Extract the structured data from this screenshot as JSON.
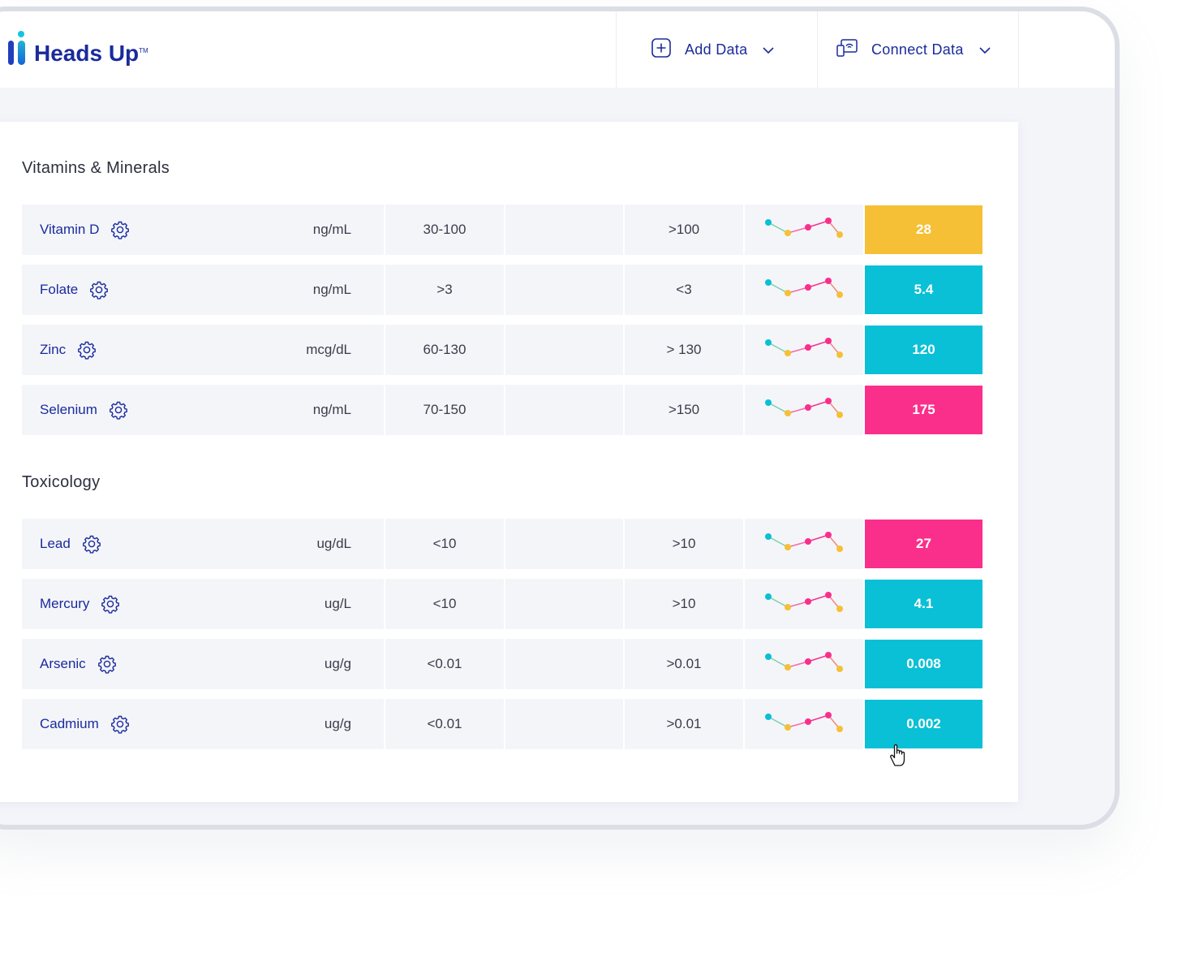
{
  "app": {
    "name": "Heads Up",
    "tm": "TM"
  },
  "header": {
    "add_data": "Add Data",
    "connect_data": "Connect Data"
  },
  "colors": {
    "brand": "#1a2b9c",
    "yellow": "#f5c036",
    "teal": "#09c0d6",
    "pink": "#fa2f8c",
    "row_bg": "#f4f5f9"
  },
  "sections": [
    {
      "title": "Vitamins & Minerals",
      "rows": [
        {
          "name": "Vitamin D",
          "unit": "ng/mL",
          "range": "30-100",
          "flag": ">100",
          "value": "28",
          "status": "yellow"
        },
        {
          "name": "Folate",
          "unit": "ng/mL",
          "range": ">3",
          "flag": "<3",
          "value": "5.4",
          "status": "teal"
        },
        {
          "name": "Zinc",
          "unit": "mcg/dL",
          "range": "60-130",
          "flag": "> 130",
          "value": "120",
          "status": "teal"
        },
        {
          "name": "Selenium",
          "unit": "ng/mL",
          "range": "70-150",
          "flag": ">150",
          "value": "175",
          "status": "pink"
        }
      ]
    },
    {
      "title": "Toxicology",
      "rows": [
        {
          "name": "Lead",
          "unit": "ug/dL",
          "range": "<10",
          "flag": ">10",
          "value": "27",
          "status": "pink"
        },
        {
          "name": "Mercury",
          "unit": "ug/L",
          "range": "<10",
          "flag": ">10",
          "value": "4.1",
          "status": "teal"
        },
        {
          "name": "Arsenic",
          "unit": "ug/g",
          "range": "<0.01",
          "flag": ">0.01",
          "value": "0.008",
          "status": "teal"
        },
        {
          "name": "Cadmium",
          "unit": "ug/g",
          "range": "<0.01",
          "flag": ">0.01",
          "value": "0.002",
          "status": "teal"
        }
      ]
    }
  ]
}
